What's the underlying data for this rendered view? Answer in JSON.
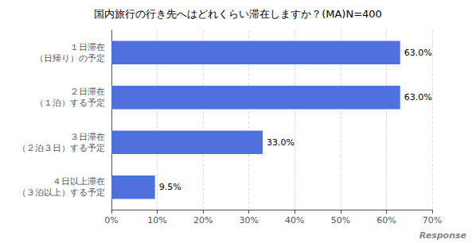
{
  "chart_data": {
    "type": "bar",
    "orientation": "horizontal",
    "title": "国内旅行の行き先へはどれくらい滞在しますか？(MA)N=400",
    "categories": [
      "１日滞在\n（日帰り）の予定",
      "２日滞在\n（１泊）する予定",
      "３日滞在\n（２泊３日）する予定",
      "４日以上滞在\n（３泊以上）する予定"
    ],
    "values": [
      63.0,
      63.0,
      33.0,
      9.5
    ],
    "value_labels": [
      "63.0%",
      "63.0%",
      "33.0%",
      "9.5%"
    ],
    "data_labels": true,
    "xlim": [
      0,
      70
    ],
    "xticks": [
      {
        "value": 0,
        "label": "0%"
      },
      {
        "value": 10,
        "label": "10%"
      },
      {
        "value": 20,
        "label": "20%"
      },
      {
        "value": 30,
        "label": "30%"
      },
      {
        "value": 40,
        "label": "40%"
      },
      {
        "value": 50,
        "label": "50%"
      },
      {
        "value": 60,
        "label": "60%"
      },
      {
        "value": 70,
        "label": "70%"
      }
    ],
    "grid": true,
    "annotations": [
      "Response"
    ]
  }
}
